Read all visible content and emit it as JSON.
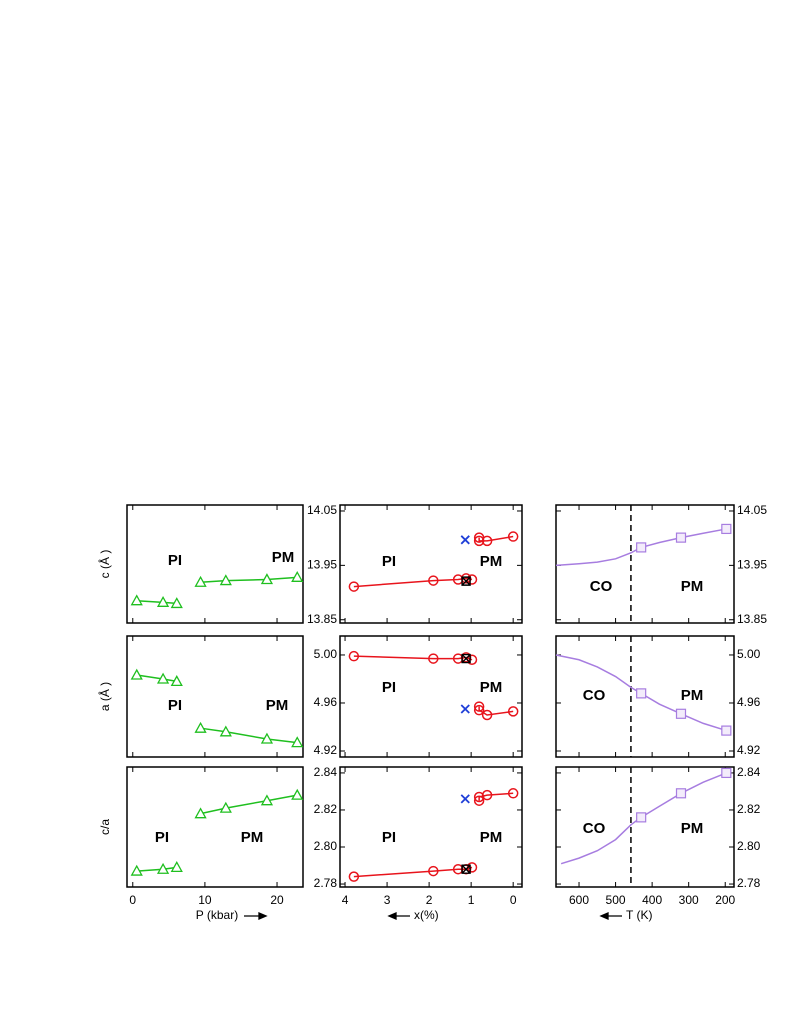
{
  "chart_data": [
    {
      "type": "line",
      "xlim": [
        -0.8,
        23.6
      ],
      "ylim": [
        13.844,
        14.061
      ],
      "ylabel": "c (Å )",
      "annotations": [
        "PI",
        "PM"
      ],
      "series": [
        {
          "color": "#1fbf1f",
          "marker": "triangle",
          "line": true,
          "x": [
            0.55,
            4.2,
            6.1
          ],
          "values": [
            13.885,
            13.882,
            13.88
          ]
        },
        {
          "color": "#1fbf1f",
          "marker": "triangle",
          "line": true,
          "x": [
            9.4,
            12.9,
            18.6,
            22.8
          ],
          "values": [
            13.919,
            13.922,
            13.924,
            13.928
          ]
        }
      ]
    },
    {
      "type": "line",
      "xlim": [
        4.12,
        -0.21
      ],
      "ylim": [
        13.844,
        14.061
      ],
      "yticks": [
        13.85,
        13.95,
        14.05
      ],
      "annotations": [
        "PI",
        "PM"
      ],
      "series": [
        {
          "color": "#e8141c",
          "marker": "circle",
          "line": true,
          "x": [
            3.79,
            1.9,
            1.31,
            1.12,
            0.98
          ],
          "values": [
            13.911,
            13.922,
            13.924,
            13.926,
            13.924
          ]
        },
        {
          "color": "#e8141c",
          "marker": "circle",
          "line": true,
          "x": [
            0.81,
            0.81,
            0.62,
            0
          ],
          "values": [
            14.001,
            13.995,
            13.995,
            14.003
          ]
        },
        {
          "color": "#1f3fd8",
          "marker": "cross",
          "line": false,
          "x": [
            1.14
          ],
          "values": [
            13.997
          ]
        },
        {
          "color": "#000000",
          "marker": "boxcross",
          "line": false,
          "x": [
            1.12
          ],
          "values": [
            13.921
          ]
        }
      ]
    },
    {
      "type": "line",
      "xlim": [
        663,
        176
      ],
      "ylim": [
        13.844,
        14.061
      ],
      "yticks": [
        13.85,
        13.95,
        14.05
      ],
      "vline": 458,
      "annotations": [
        "CO",
        "PM"
      ],
      "series": [
        {
          "color": "#a77de0",
          "marker": null,
          "line": true,
          "x": [
            663,
            600,
            550,
            500,
            458,
            430,
            380,
            321,
            260,
            197
          ],
          "values": [
            13.95,
            13.953,
            13.956,
            13.962,
            13.973,
            13.983,
            13.992,
            14.001,
            14.009,
            14.017
          ]
        },
        {
          "color": "#a77de0",
          "marker": "square",
          "line": false,
          "x": [
            430,
            321,
            197
          ],
          "values": [
            13.983,
            14.001,
            14.017
          ]
        }
      ]
    },
    {
      "type": "line",
      "xlim": [
        -0.8,
        23.6
      ],
      "ylim": [
        4.915,
        5.0158
      ],
      "ylabel": "a (Å )",
      "annotations": [
        "PI",
        "PM"
      ],
      "series": [
        {
          "color": "#1fbf1f",
          "marker": "triangle",
          "line": true,
          "x": [
            0.55,
            4.2,
            6.1
          ],
          "values": [
            4.9833,
            4.98,
            4.978
          ]
        },
        {
          "color": "#1fbf1f",
          "marker": "triangle",
          "line": true,
          "x": [
            9.4,
            12.9,
            18.6,
            22.8
          ],
          "values": [
            4.939,
            4.936,
            4.93,
            4.927
          ]
        }
      ]
    },
    {
      "type": "line",
      "xlim": [
        4.12,
        -0.21
      ],
      "ylim": [
        4.915,
        5.0158
      ],
      "yticks": [
        4.92,
        4.96,
        {
          "value": 5,
          "label": "5.00"
        }
      ],
      "annotations": [
        "PI",
        "PM"
      ],
      "series": [
        {
          "color": "#e8141c",
          "marker": "circle",
          "line": true,
          "x": [
            3.79,
            1.9,
            1.31,
            1.12,
            0.98
          ],
          "values": [
            4.999,
            4.997,
            4.997,
            4.998,
            4.996
          ]
        },
        {
          "color": "#e8141c",
          "marker": "circle",
          "line": true,
          "x": [
            0.81,
            0.81,
            0.62,
            0
          ],
          "values": [
            4.957,
            4.954,
            4.95,
            4.953
          ]
        },
        {
          "color": "#1f3fd8",
          "marker": "cross",
          "line": false,
          "x": [
            1.14
          ],
          "values": [
            4.955
          ]
        },
        {
          "color": "#000000",
          "marker": "boxcross",
          "line": false,
          "x": [
            1.12
          ],
          "values": [
            4.997
          ]
        }
      ]
    },
    {
      "type": "line",
      "xlim": [
        663,
        176
      ],
      "ylim": [
        4.915,
        5.0158
      ],
      "yticks": [
        4.92,
        4.96,
        {
          "value": 5,
          "label": "5.00"
        }
      ],
      "vline": 458,
      "annotations": [
        "CO",
        "PM"
      ],
      "series": [
        {
          "color": "#a77de0",
          "marker": null,
          "line": true,
          "x": [
            663,
            600,
            550,
            500,
            458,
            430,
            380,
            321,
            260,
            197
          ],
          "values": [
            5.0,
            4.996,
            4.99,
            4.982,
            4.973,
            4.968,
            4.959,
            4.951,
            4.943,
            4.937
          ]
        },
        {
          "color": "#a77de0",
          "marker": "square",
          "line": false,
          "x": [
            430,
            321,
            197
          ],
          "values": [
            4.968,
            4.951,
            4.937
          ]
        }
      ]
    },
    {
      "type": "line",
      "xlim": [
        -0.8,
        23.6
      ],
      "ylim": [
        2.7784,
        2.8432
      ],
      "xticks": [
        0,
        10,
        20
      ],
      "xlabel": "P (kbar)",
      "ylabel": "c/a",
      "annotations": [
        "PI",
        "PM"
      ],
      "series": [
        {
          "color": "#1fbf1f",
          "marker": "triangle",
          "line": true,
          "x": [
            0.55,
            4.2,
            6.1
          ],
          "values": [
            2.787,
            2.788,
            2.789
          ]
        },
        {
          "color": "#1fbf1f",
          "marker": "triangle",
          "line": true,
          "x": [
            9.4,
            12.9,
            18.6,
            22.8
          ],
          "values": [
            2.818,
            2.821,
            2.825,
            2.828
          ]
        }
      ]
    },
    {
      "type": "line",
      "xlim": [
        4.12,
        -0.21
      ],
      "ylim": [
        2.7784,
        2.8432
      ],
      "xticks": [
        4,
        3,
        2,
        1,
        0
      ],
      "yticks": [
        2.78,
        {
          "value": 2.8,
          "label": "2.80"
        },
        2.82,
        2.84
      ],
      "xlabel": "x(%)",
      "annotations": [
        "PI",
        "PM"
      ],
      "series": [
        {
          "color": "#e8141c",
          "marker": "circle",
          "line": true,
          "x": [
            3.79,
            1.9,
            1.31,
            1.12,
            0.98
          ],
          "values": [
            2.784,
            2.787,
            2.788,
            2.788,
            2.789
          ]
        },
        {
          "color": "#e8141c",
          "marker": "circle",
          "line": true,
          "x": [
            0.81,
            0.81,
            0.62,
            0
          ],
          "values": [
            2.825,
            2.827,
            2.828,
            2.829
          ]
        },
        {
          "color": "#1f3fd8",
          "marker": "cross",
          "line": false,
          "x": [
            1.14
          ],
          "values": [
            2.826
          ]
        },
        {
          "color": "#000000",
          "marker": "boxcross",
          "line": false,
          "x": [
            1.12
          ],
          "values": [
            2.788
          ]
        }
      ]
    },
    {
      "type": "line",
      "xlim": [
        663,
        176
      ],
      "ylim": [
        2.7784,
        2.8432
      ],
      "xticks": [
        600,
        500,
        400,
        300,
        200
      ],
      "yticks": [
        2.78,
        {
          "value": 2.8,
          "label": "2.80"
        },
        2.82,
        2.84
      ],
      "xlabel": "T (K)",
      "vline": 458,
      "annotations": [
        "CO",
        "PM"
      ],
      "series": [
        {
          "color": "#a77de0",
          "marker": null,
          "line": true,
          "x": [
            649,
            600,
            550,
            500,
            458,
            430,
            380,
            321,
            260,
            197
          ],
          "values": [
            2.791,
            2.794,
            2.798,
            2.804,
            2.812,
            2.816,
            2.822,
            2.829,
            2.835,
            2.84
          ]
        },
        {
          "color": "#a77de0",
          "marker": "square",
          "line": false,
          "x": [
            430,
            321,
            197
          ],
          "values": [
            2.816,
            2.829,
            2.84
          ]
        }
      ]
    }
  ]
}
